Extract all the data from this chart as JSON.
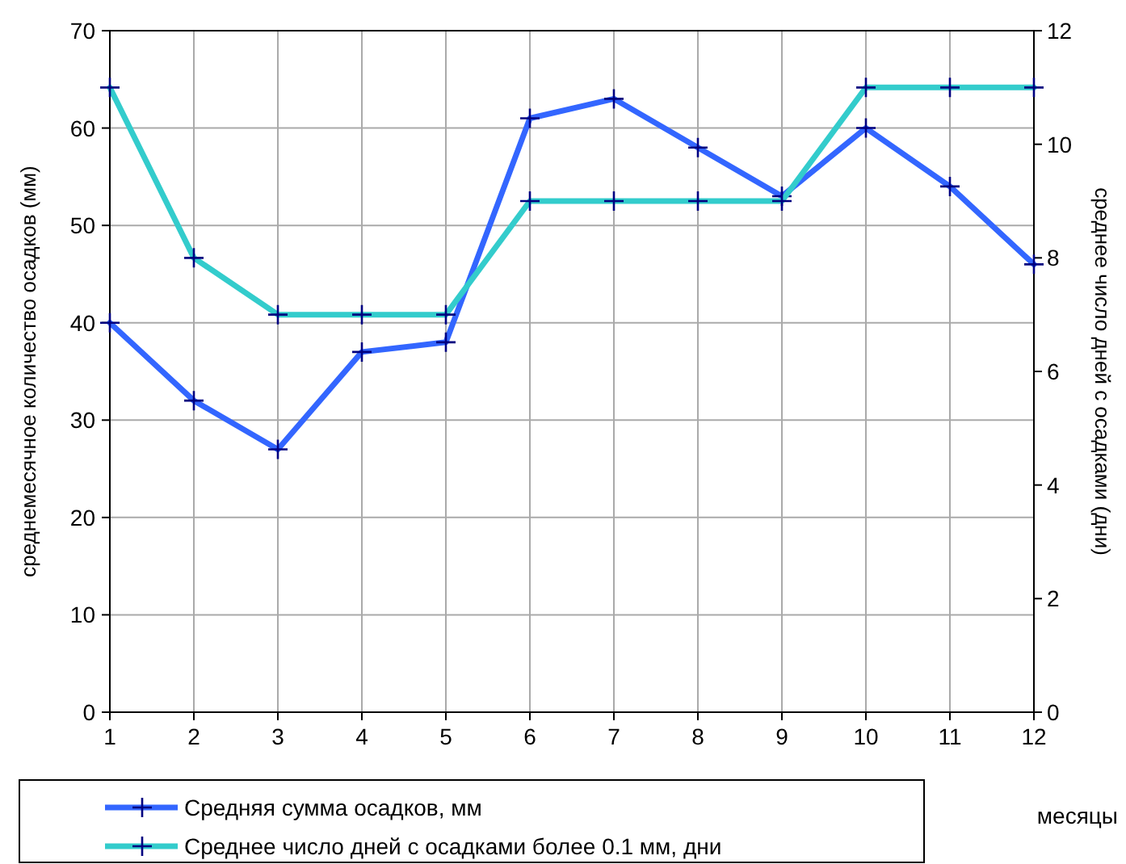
{
  "chart_data": {
    "type": "line",
    "xlabel": "месяцы",
    "ylabel": "среднемесячное количество осадков (мм)",
    "y2label": "среднее число дней с осадками (дни)",
    "x": [
      1,
      2,
      3,
      4,
      5,
      6,
      7,
      8,
      9,
      10,
      11,
      12
    ],
    "series": [
      {
        "name": "Средняя сумма осадков, мм",
        "color": "#3366ff",
        "values": [
          40,
          32,
          27,
          37,
          38,
          61,
          63,
          58,
          53,
          60,
          54,
          46
        ]
      },
      {
        "name": "Среднее число дней с  осадками более 0.1 мм, дни",
        "color": "#33cccc",
        "axis": "y2",
        "values": [
          11,
          8,
          7,
          7,
          7,
          9,
          9,
          9,
          9,
          11,
          11,
          11
        ]
      }
    ],
    "xlim": [
      1,
      12
    ],
    "xticks": [
      1,
      2,
      3,
      4,
      5,
      6,
      7,
      8,
      9,
      10,
      11,
      12
    ],
    "ylim": [
      0,
      70
    ],
    "yticks": [
      0,
      10,
      20,
      30,
      40,
      50,
      60,
      70
    ],
    "y2lim": [
      0,
      12
    ],
    "y2ticks": [
      0,
      2,
      4,
      6,
      8,
      10,
      12
    ],
    "grid": true,
    "legend": "bottom",
    "marker": "cross",
    "line_style": "solid"
  }
}
